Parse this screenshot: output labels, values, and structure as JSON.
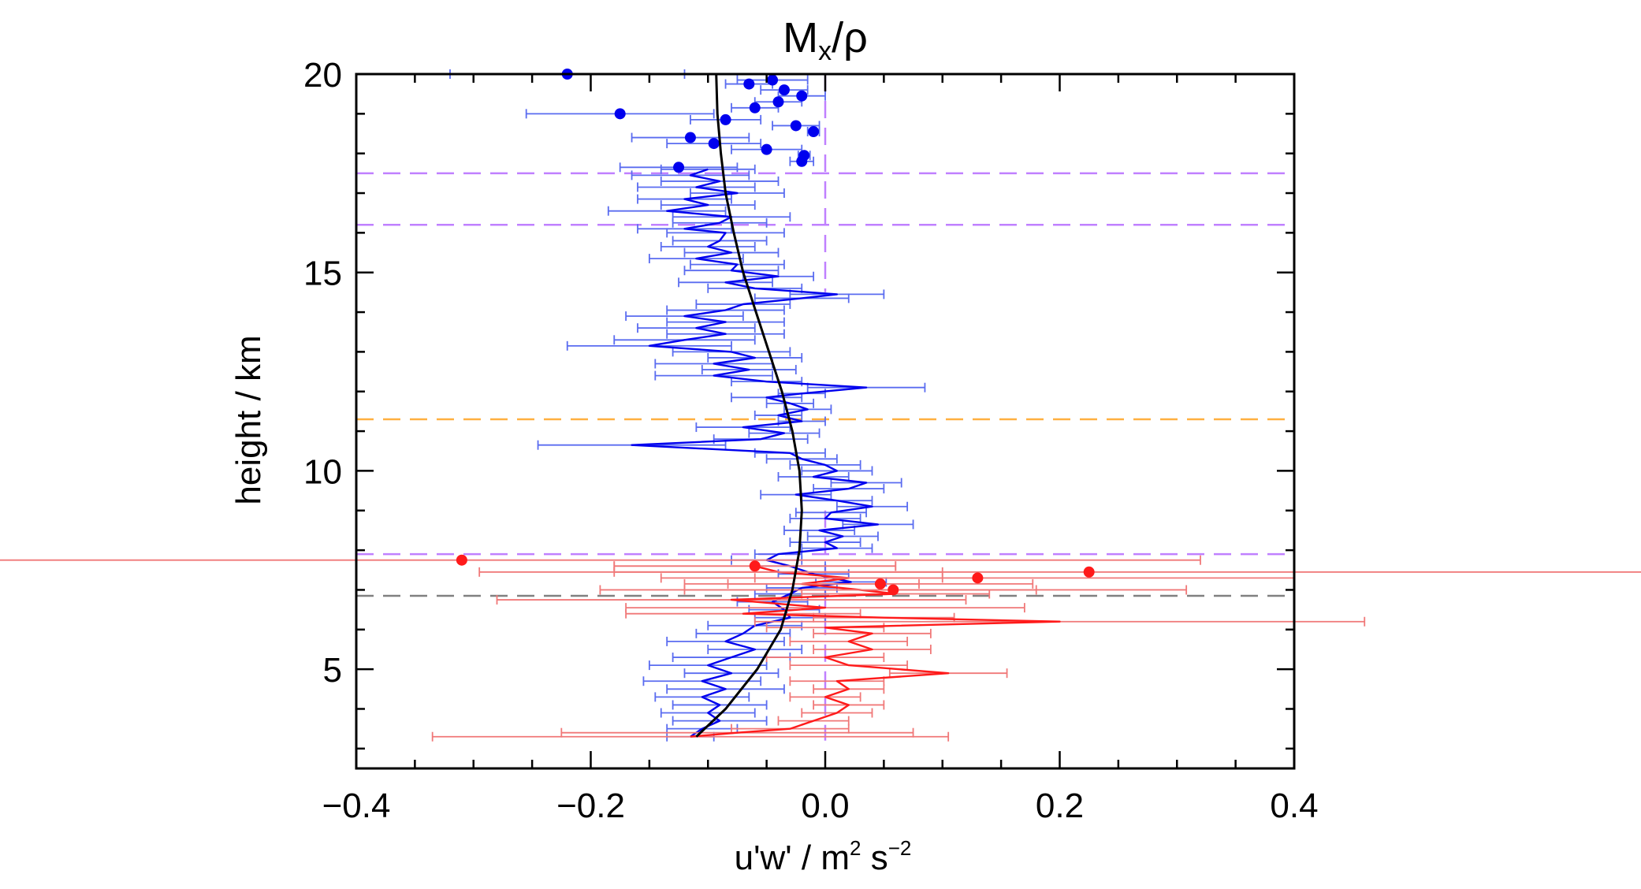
{
  "chart_data": {
    "type": "scatter",
    "title": "Mx/ρ",
    "title_main": "M",
    "title_sub": "x",
    "title_tail": "/ρ",
    "xlabel": "u'w' / m² s⁻²",
    "xlabel_parts": {
      "base": "u'w' / m",
      "sup1": "2",
      "mid": " s",
      "sup2": "−2"
    },
    "ylabel": "height / km",
    "xlim": [
      -0.4,
      0.4
    ],
    "ylim": [
      2.5,
      20
    ],
    "xticks": [
      -0.4,
      -0.2,
      0.0,
      0.2,
      0.4
    ],
    "xtick_labels": [
      "−0.4",
      "−0.2",
      "0.0",
      "0.2",
      "0.4"
    ],
    "yticks": [
      5,
      10,
      15,
      20
    ],
    "ytick_labels": [
      "5",
      "10",
      "15",
      "20"
    ],
    "x_minor_step": 0.05,
    "y_minor_step": 1,
    "colors": {
      "blue": "#0000ee",
      "blue_light": "#5a6cf0",
      "red": "#ff1a1a",
      "red_light": "#f07878",
      "purple": "#c080ff",
      "orange": "#ffb040",
      "gray": "#808080",
      "black": "#000000"
    },
    "reference_lines": [
      {
        "type": "horizontal",
        "y": 17.5,
        "color": "purple"
      },
      {
        "type": "horizontal",
        "y": 16.2,
        "color": "purple"
      },
      {
        "type": "horizontal",
        "y": 11.3,
        "color": "orange"
      },
      {
        "type": "horizontal",
        "y": 7.9,
        "color": "purple"
      },
      {
        "type": "horizontal",
        "y": 6.85,
        "color": "gray"
      },
      {
        "type": "vertical_segment",
        "x": 0.0,
        "y_range": [
          14.5,
          20
        ],
        "color": "purple"
      },
      {
        "type": "vertical_segment",
        "x": 0.0,
        "y_range": [
          3.2,
          9.0
        ],
        "color": "purple"
      }
    ],
    "fit_curve": {
      "name": "fit",
      "color": "black",
      "points": [
        [
          -0.11,
          3.3
        ],
        [
          -0.085,
          4.0
        ],
        [
          -0.058,
          5.0
        ],
        [
          -0.038,
          6.0
        ],
        [
          -0.028,
          7.0
        ],
        [
          -0.022,
          8.0
        ],
        [
          -0.02,
          9.0
        ],
        [
          -0.022,
          10.0
        ],
        [
          -0.028,
          11.0
        ],
        [
          -0.037,
          12.0
        ],
        [
          -0.048,
          13.0
        ],
        [
          -0.059,
          14.0
        ],
        [
          -0.07,
          15.0
        ],
        [
          -0.078,
          16.0
        ],
        [
          -0.085,
          17.0
        ],
        [
          -0.089,
          18.0
        ],
        [
          -0.092,
          19.0
        ],
        [
          -0.093,
          20.0
        ]
      ]
    },
    "series": [
      {
        "name": "blue profile",
        "color": "blue",
        "style": "line_with_xerr",
        "points": [
          [
            -0.115,
            3.3,
            0.02
          ],
          [
            -0.105,
            3.5,
            0.03
          ],
          [
            -0.09,
            3.7,
            0.04
          ],
          [
            -0.1,
            3.9,
            0.04
          ],
          [
            -0.09,
            4.1,
            0.04
          ],
          [
            -0.105,
            4.3,
            0.04
          ],
          [
            -0.085,
            4.5,
            0.05
          ],
          [
            -0.105,
            4.7,
            0.05
          ],
          [
            -0.08,
            4.9,
            0.04
          ],
          [
            -0.1,
            5.1,
            0.05
          ],
          [
            -0.08,
            5.3,
            0.05
          ],
          [
            -0.06,
            5.5,
            0.04
          ],
          [
            -0.085,
            5.7,
            0.05
          ],
          [
            -0.07,
            5.9,
            0.04
          ],
          [
            -0.06,
            6.1,
            0.04
          ],
          [
            -0.03,
            6.3,
            0.03
          ],
          [
            -0.035,
            6.5,
            0.03
          ],
          [
            -0.045,
            6.7,
            0.03
          ],
          [
            -0.03,
            6.9,
            0.03
          ],
          [
            -0.02,
            7.05,
            0.03
          ],
          [
            0.022,
            7.2,
            0.03
          ],
          [
            -0.01,
            7.4,
            0.03
          ],
          [
            -0.03,
            7.6,
            0.03
          ],
          [
            -0.05,
            7.75,
            0.03
          ],
          [
            -0.04,
            7.9,
            0.02
          ],
          [
            0.01,
            8.05,
            0.03
          ],
          [
            0.0,
            8.2,
            0.03
          ],
          [
            0.015,
            8.35,
            0.03
          ],
          [
            -0.005,
            8.5,
            0.03
          ],
          [
            0.045,
            8.65,
            0.03
          ],
          [
            0.0,
            8.8,
            0.03
          ],
          [
            0.005,
            8.95,
            0.03
          ],
          [
            0.04,
            9.1,
            0.03
          ],
          [
            0.01,
            9.25,
            0.03
          ],
          [
            -0.025,
            9.4,
            0.03
          ],
          [
            0.02,
            9.55,
            0.03
          ],
          [
            0.035,
            9.7,
            0.03
          ],
          [
            -0.01,
            9.85,
            0.03
          ],
          [
            0.01,
            10.0,
            0.03
          ],
          [
            0.0,
            10.15,
            0.03
          ],
          [
            -0.02,
            10.3,
            0.03
          ],
          [
            -0.03,
            10.45,
            0.03
          ],
          [
            -0.165,
            10.65,
            0.08
          ],
          [
            -0.055,
            10.8,
            0.04
          ],
          [
            -0.035,
            10.95,
            0.03
          ],
          [
            -0.07,
            11.1,
            0.04
          ],
          [
            -0.02,
            11.25,
            0.02
          ],
          [
            -0.04,
            11.4,
            0.02
          ],
          [
            -0.015,
            11.55,
            0.02
          ],
          [
            -0.03,
            11.7,
            0.02
          ],
          [
            -0.05,
            11.85,
            0.03
          ],
          [
            -0.02,
            11.95,
            0.02
          ],
          [
            0.035,
            12.1,
            0.05
          ],
          [
            -0.05,
            12.25,
            0.03
          ],
          [
            -0.095,
            12.4,
            0.05
          ],
          [
            -0.065,
            12.55,
            0.04
          ],
          [
            -0.095,
            12.7,
            0.05
          ],
          [
            -0.06,
            12.85,
            0.04
          ],
          [
            -0.08,
            13.0,
            0.05
          ],
          [
            -0.15,
            13.15,
            0.07
          ],
          [
            -0.12,
            13.3,
            0.06
          ],
          [
            -0.085,
            13.45,
            0.05
          ],
          [
            -0.11,
            13.6,
            0.05
          ],
          [
            -0.085,
            13.75,
            0.05
          ],
          [
            -0.12,
            13.9,
            0.05
          ],
          [
            -0.085,
            14.05,
            0.05
          ],
          [
            -0.07,
            14.2,
            0.04
          ],
          [
            -0.02,
            14.35,
            0.04
          ],
          [
            0.01,
            14.45,
            0.04
          ],
          [
            -0.06,
            14.6,
            0.04
          ],
          [
            -0.085,
            14.75,
            0.04
          ],
          [
            -0.04,
            14.9,
            0.03
          ],
          [
            -0.08,
            15.05,
            0.04
          ],
          [
            -0.075,
            15.2,
            0.04
          ],
          [
            -0.11,
            15.35,
            0.04
          ],
          [
            -0.08,
            15.5,
            0.04
          ],
          [
            -0.1,
            15.65,
            0.04
          ],
          [
            -0.09,
            15.8,
            0.04
          ],
          [
            -0.085,
            16.0,
            0.05
          ],
          [
            -0.12,
            16.1,
            0.04
          ],
          [
            -0.09,
            16.25,
            0.04
          ],
          [
            -0.08,
            16.4,
            0.05
          ],
          [
            -0.135,
            16.55,
            0.05
          ],
          [
            -0.1,
            16.7,
            0.04
          ],
          [
            -0.12,
            16.85,
            0.04
          ],
          [
            -0.075,
            17.0,
            0.04
          ],
          [
            -0.11,
            17.15,
            0.05
          ],
          [
            -0.09,
            17.3,
            0.05
          ],
          [
            -0.115,
            17.45,
            0.05
          ],
          [
            -0.1,
            17.6,
            0.04
          ]
        ]
      },
      {
        "name": "red profile",
        "color": "red",
        "style": "line_with_xerr",
        "points": [
          [
            -0.115,
            3.3,
            0.22
          ],
          [
            -0.075,
            3.4,
            0.15
          ],
          [
            -0.03,
            3.5,
            0.05
          ],
          [
            -0.01,
            3.7,
            0.03
          ],
          [
            0.01,
            3.9,
            0.03
          ],
          [
            0.02,
            4.1,
            0.03
          ],
          [
            0.0,
            4.3,
            0.03
          ],
          [
            0.02,
            4.5,
            0.03
          ],
          [
            0.01,
            4.7,
            0.04
          ],
          [
            0.105,
            4.9,
            0.05
          ],
          [
            0.02,
            5.1,
            0.05
          ],
          [
            0.0,
            5.3,
            0.05
          ],
          [
            0.04,
            5.5,
            0.05
          ],
          [
            0.02,
            5.7,
            0.05
          ],
          [
            0.04,
            5.9,
            0.05
          ],
          [
            0.0,
            6.05,
            0.05
          ],
          [
            0.2,
            6.2,
            0.26
          ],
          [
            0.05,
            6.3,
            0.06
          ],
          [
            -0.07,
            6.4,
            0.1
          ],
          [
            0.0,
            6.55,
            0.17
          ],
          [
            -0.08,
            6.75,
            0.2
          ],
          [
            0.06,
            6.9,
            0.08
          ],
          [
            0.03,
            7.0,
            0.15
          ],
          [
            -0.02,
            7.15,
            0.1
          ],
          [
            0.02,
            7.3,
            0.08
          ],
          [
            -0.04,
            7.45,
            0.14
          ],
          [
            -0.06,
            7.6,
            0.12
          ]
        ]
      },
      {
        "name": "blue dots",
        "color": "blue",
        "style": "points_with_xerr",
        "points": [
          [
            -0.22,
            20.0,
            0.1
          ],
          [
            -0.045,
            19.85,
            0.03
          ],
          [
            -0.065,
            19.75,
            0.02
          ],
          [
            -0.035,
            19.6,
            0.02
          ],
          [
            -0.02,
            19.45,
            0.02
          ],
          [
            -0.04,
            19.3,
            0.02
          ],
          [
            -0.06,
            19.15,
            0.02
          ],
          [
            -0.175,
            19.0,
            0.08
          ],
          [
            -0.085,
            18.85,
            0.03
          ],
          [
            -0.025,
            18.7,
            0.02
          ],
          [
            -0.01,
            18.55,
            0.005
          ],
          [
            -0.115,
            18.4,
            0.05
          ],
          [
            -0.095,
            18.25,
            0.04
          ],
          [
            -0.05,
            18.1,
            0.03
          ],
          [
            -0.018,
            17.95,
            0.005
          ],
          [
            -0.02,
            17.8,
            0.01
          ],
          [
            -0.125,
            17.65,
            0.05
          ]
        ]
      },
      {
        "name": "red dots",
        "color": "red",
        "style": "points_with_xerr",
        "points": [
          [
            -0.31,
            7.75,
            0.63
          ],
          [
            -0.06,
            7.6,
            0.12
          ],
          [
            0.225,
            7.45,
            0.52
          ],
          [
            0.13,
            7.3,
            0.27
          ],
          [
            0.047,
            7.15,
            0.13
          ],
          [
            0.058,
            7.0,
            0.25
          ]
        ]
      }
    ]
  }
}
